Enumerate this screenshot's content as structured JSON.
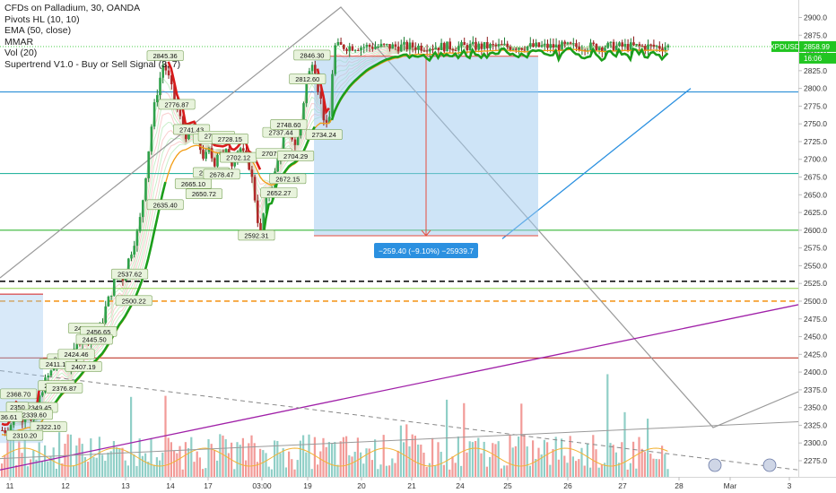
{
  "legend": {
    "title": "CFDs on Palladium, 30, OANDA",
    "indicators": [
      "Pivots HL (10, 10)",
      "EMA (50, close)",
      "MMAR",
      "Vol (20)",
      "Supertrend V1.0 - Buy or Sell Signal (3, 7)"
    ]
  },
  "symbol_tag": "XPDUSD",
  "last_price_label": "2858.99",
  "countdown_label": "16:06",
  "measure_label": "−259.40 (−9.10%) −25939.7",
  "colors": {
    "up": "#26a69a",
    "down": "#ef5350",
    "ema": "#f29c13",
    "supertrend_up": "#1b9e1b",
    "supertrend_down": "#d81b1b",
    "measure_box": "#9ec9ef",
    "measure_label_bg": "#2b90e0"
  },
  "chart_data": {
    "type": "candlestick",
    "y_axis": {
      "min": 2262.5,
      "max": 2918,
      "ticks": [
        2900,
        2875,
        2850,
        2825,
        2800,
        2775,
        2750,
        2725,
        2700,
        2675,
        2650,
        2625,
        2600,
        2575,
        2550,
        2525,
        2500,
        2475,
        2450,
        2425,
        2400,
        2375,
        2350,
        2325,
        2300,
        2275
      ]
    },
    "x_axis": {
      "ticks": [
        "11",
        "12",
        "13",
        "14",
        "17",
        "03:00",
        "19",
        "20",
        "21",
        "24",
        "25",
        "26",
        "27",
        "28",
        "Mar",
        "3"
      ]
    },
    "price_path": [
      [
        0,
        2318
      ],
      [
        0.05,
        2335
      ],
      [
        0.1,
        2355
      ],
      [
        0.15,
        2345
      ],
      [
        0.2,
        2330
      ],
      [
        0.25,
        2340
      ],
      [
        0.3,
        2348
      ],
      [
        0.35,
        2342
      ],
      [
        0.4,
        2322
      ],
      [
        0.45,
        2330
      ],
      [
        0.5,
        2345
      ],
      [
        0.55,
        2372
      ],
      [
        0.6,
        2380
      ],
      [
        0.65,
        2390
      ],
      [
        0.7,
        2395
      ],
      [
        0.75,
        2402
      ],
      [
        0.8,
        2410
      ],
      [
        0.85,
        2415
      ],
      [
        0.9,
        2418
      ],
      [
        0.95,
        2425
      ],
      [
        1.0,
        2410
      ],
      [
        1.05,
        2408
      ],
      [
        1.1,
        2418
      ],
      [
        1.15,
        2430
      ],
      [
        1.2,
        2440
      ],
      [
        1.25,
        2450
      ],
      [
        1.3,
        2458
      ],
      [
        1.35,
        2452
      ],
      [
        1.4,
        2446
      ],
      [
        1.45,
        2450
      ],
      [
        1.5,
        2455
      ],
      [
        1.55,
        2460
      ],
      [
        1.6,
        2470
      ],
      [
        1.65,
        2488
      ],
      [
        1.7,
        2500
      ],
      [
        1.75,
        2512
      ],
      [
        1.8,
        2528
      ],
      [
        1.85,
        2535
      ],
      [
        1.9,
        2538
      ],
      [
        1.95,
        2532
      ],
      [
        2.0,
        2548
      ],
      [
        2.05,
        2565
      ],
      [
        2.1,
        2585
      ],
      [
        2.15,
        2600
      ],
      [
        2.2,
        2640
      ],
      [
        2.25,
        2690
      ],
      [
        2.3,
        2740
      ],
      [
        2.35,
        2780
      ],
      [
        2.4,
        2808
      ],
      [
        2.45,
        2835
      ],
      [
        2.5,
        2822
      ],
      [
        2.55,
        2800
      ],
      [
        2.6,
        2776
      ],
      [
        2.65,
        2760
      ],
      [
        2.7,
        2740
      ],
      [
        2.75,
        2730
      ],
      [
        2.8,
        2745
      ],
      [
        2.85,
        2730
      ],
      [
        2.9,
        2715
      ],
      [
        2.95,
        2700
      ],
      [
        3.0,
        2712
      ],
      [
        3.05,
        2706
      ],
      [
        3.1,
        2692
      ],
      [
        3.15,
        2703
      ],
      [
        3.2,
        2718
      ],
      [
        3.25,
        2708
      ],
      [
        3.3,
        2700
      ],
      [
        3.35,
        2712
      ],
      [
        3.4,
        2705
      ],
      [
        3.45,
        2695
      ],
      [
        3.5,
        2705
      ],
      [
        3.55,
        2712
      ],
      [
        3.6,
        2718
      ],
      [
        3.65,
        2710
      ],
      [
        3.7,
        2702
      ],
      [
        3.75,
        2696
      ],
      [
        3.8,
        2688
      ],
      [
        3.85,
        2665
      ],
      [
        3.9,
        2640
      ],
      [
        3.95,
        2612
      ],
      [
        4.0,
        2595
      ],
      [
        4.05,
        2620
      ],
      [
        4.1,
        2635
      ],
      [
        4.15,
        2648
      ],
      [
        4.2,
        2656
      ],
      [
        4.25,
        2668
      ],
      [
        4.3,
        2682
      ],
      [
        4.35,
        2700
      ],
      [
        4.4,
        2712
      ],
      [
        4.45,
        2728
      ],
      [
        4.5,
        2738
      ],
      [
        4.55,
        2742
      ],
      [
        4.6,
        2738
      ],
      [
        4.65,
        2730
      ],
      [
        4.7,
        2722
      ],
      [
        4.75,
        2730
      ],
      [
        4.8,
        2746
      ],
      [
        4.85,
        2770
      ],
      [
        4.9,
        2796
      ],
      [
        4.95,
        2812
      ],
      [
        5.0,
        2825
      ],
      [
        5.05,
        2842
      ],
      [
        5.1,
        2828
      ],
      [
        5.15,
        2802
      ],
      [
        5.2,
        2788
      ],
      [
        5.25,
        2765
      ],
      [
        5.3,
        2748
      ],
      [
        5.35,
        2740
      ],
      [
        5.38,
        2762
      ],
      [
        5.42,
        2802
      ],
      [
        5.45,
        2858.99
      ]
    ],
    "pivot_labels": [
      {
        "x": 2.48,
        "y": 2845.36,
        "text": "2845.36"
      },
      {
        "x": 2.62,
        "y": 2776.87,
        "text": "2776.87"
      },
      {
        "x": 2.8,
        "y": 2741.43,
        "text": "2741.43"
      },
      {
        "x": 3.06,
        "y": 2728.43,
        "text": "2728.43"
      },
      {
        "x": 3.16,
        "y": 2732.22,
        "text": "2732.22"
      },
      {
        "x": 3.42,
        "y": 2728.15,
        "text": "2728.15"
      },
      {
        "x": 3.58,
        "y": 2702.12,
        "text": "2702.12"
      },
      {
        "x": 2.48,
        "y": 2635.4,
        "text": "2635.40"
      },
      {
        "x": 2.82,
        "y": 2665.1,
        "text": "2665.10"
      },
      {
        "x": 2.95,
        "y": 2650.72,
        "text": "2650.72"
      },
      {
        "x": 3.06,
        "y": 2680.73,
        "text": "2680.73"
      },
      {
        "x": 3.26,
        "y": 2678.47,
        "text": "2678.47"
      },
      {
        "x": 3.93,
        "y": 2592.31,
        "text": "2592.31"
      },
      {
        "x": 4.28,
        "y": 2707.58,
        "text": "2707.58"
      },
      {
        "x": 4.42,
        "y": 2737.44,
        "text": "2737.44"
      },
      {
        "x": 4.58,
        "y": 2748.6,
        "text": "2748.60"
      },
      {
        "x": 4.38,
        "y": 2652.27,
        "text": "2652.27"
      },
      {
        "x": 4.56,
        "y": 2672.15,
        "text": "2672.15"
      },
      {
        "x": 4.72,
        "y": 2704.29,
        "text": "2704.29"
      },
      {
        "x": 4.96,
        "y": 2812.6,
        "text": "2812.60"
      },
      {
        "x": 5.05,
        "y": 2846.3,
        "text": "2846.30"
      },
      {
        "x": 5.28,
        "y": 2734.24,
        "text": "2734.24"
      },
      {
        "x": 2.05,
        "y": 2537.62,
        "text": "2537.62"
      },
      {
        "x": 2.1,
        "y": 2500.22,
        "text": "2500.22"
      },
      {
        "x": 1.35,
        "y": 2461.25,
        "text": "2461.25"
      },
      {
        "x": 1.55,
        "y": 2456.65,
        "text": "2456.65"
      },
      {
        "x": 1.48,
        "y": 2445.5,
        "text": "2445.50"
      },
      {
        "x": 1.0,
        "y": 2417.99,
        "text": "2417.99"
      },
      {
        "x": 0.86,
        "y": 2411.13,
        "text": "2411.13"
      },
      {
        "x": 1.18,
        "y": 2424.46,
        "text": "2424.46"
      },
      {
        "x": 1.3,
        "y": 2407.19,
        "text": "2407.19"
      },
      {
        "x": 0.84,
        "y": 2380.25,
        "text": "2380.25"
      },
      {
        "x": 0.98,
        "y": 2376.87,
        "text": "2376.87"
      },
      {
        "x": 0.17,
        "y": 2368.7,
        "text": "2368.70"
      },
      {
        "x": 0.4,
        "y": 2349.45,
        "text": "2349.45"
      },
      {
        "x": 0.54,
        "y": 2349.45,
        "text": "2349.45"
      },
      {
        "x": 0.15,
        "y": 2350.0,
        "text": "2350"
      },
      {
        "x": 0.45,
        "y": 2339.6,
        "text": "2339.60"
      },
      {
        "x": 0.7,
        "y": 2322.1,
        "text": "2322.10"
      },
      {
        "x": 0.28,
        "y": 2310.2,
        "text": "2310.20"
      },
      {
        "x": 0.0,
        "y": 2336.61,
        "text": "36.61"
      }
    ],
    "horizontal_levels": [
      {
        "price": 2858.99,
        "color": "#5fd35f",
        "style": "dotted"
      },
      {
        "price": 2795,
        "color": "#2b8fd6",
        "style": "solid"
      },
      {
        "price": 2680,
        "color": "#2bb5a0",
        "style": "solid"
      },
      {
        "price": 2600,
        "color": "#35b535",
        "style": "solid"
      },
      {
        "price": 2528,
        "color": "#111111",
        "style": "dashed"
      },
      {
        "price": 2518,
        "color": "#8fd14f",
        "style": "solid"
      },
      {
        "price": 2500,
        "color": "#f59a23",
        "style": "dashed"
      },
      {
        "price": 2420,
        "color": "#c0392b",
        "style": "solid"
      }
    ]
  }
}
